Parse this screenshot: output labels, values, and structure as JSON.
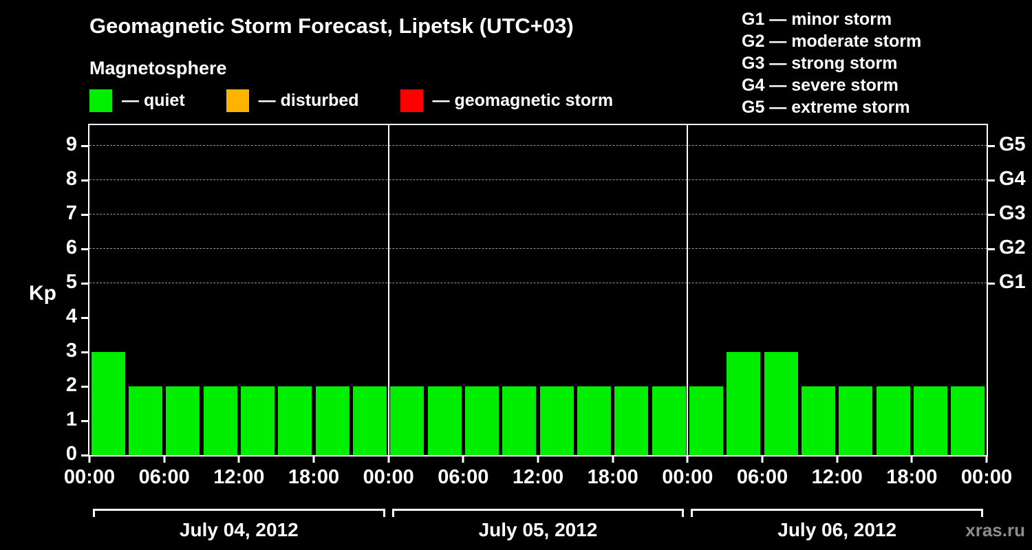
{
  "title": "Geomagnetic Storm Forecast, Lipetsk (UTC+03)",
  "subtitle": "Magnetosphere",
  "legend": {
    "items": [
      {
        "name": "quiet",
        "label": "— quiet",
        "color": "#00ee00"
      },
      {
        "name": "disturbed",
        "label": "— disturbed",
        "color": "#ffb300"
      },
      {
        "name": "geomagnetic-storm",
        "label": "— geomagnetic storm",
        "color": "#ff0000"
      }
    ]
  },
  "g_legend": [
    "G1 — minor storm",
    "G2 — moderate storm",
    "G3 — strong storm",
    "G4 — severe storm",
    "G5 — extreme storm"
  ],
  "watermark": "xras.ru",
  "chart_data": {
    "type": "bar",
    "title": "Geomagnetic Storm Forecast, Lipetsk (UTC+03)",
    "ylabel": "Kp",
    "xlabel": "",
    "ylim": [
      0,
      9.6
    ],
    "yticks": [
      0,
      1,
      2,
      3,
      4,
      5,
      6,
      7,
      8,
      9
    ],
    "gridlines": [
      5,
      6,
      7,
      8,
      9
    ],
    "grid": "dashed-horizontal-at-storm-levels",
    "right_axis_ticks": [
      {
        "value": 5,
        "label": "G1"
      },
      {
        "value": 6,
        "label": "G2"
      },
      {
        "value": 7,
        "label": "G3"
      },
      {
        "value": 8,
        "label": "G4"
      },
      {
        "value": 9,
        "label": "G5"
      }
    ],
    "bar_interval_hours": 3,
    "x_tick_labels_per_day": [
      "00:00",
      "06:00",
      "12:00",
      "18:00"
    ],
    "closing_x_tick_label": "00:00",
    "series_color_key": {
      "quiet": "#00ee00",
      "disturbed": "#ffb300",
      "storm": "#ff0000"
    },
    "days": [
      {
        "date": "July 04, 2012",
        "values": [
          3,
          2,
          2,
          2,
          2,
          2,
          2,
          2
        ]
      },
      {
        "date": "July 05, 2012",
        "values": [
          2,
          2,
          2,
          2,
          2,
          2,
          2,
          2
        ]
      },
      {
        "date": "July 06, 2012",
        "values": [
          2,
          3,
          3,
          2,
          2,
          2,
          2,
          2
        ]
      }
    ]
  }
}
